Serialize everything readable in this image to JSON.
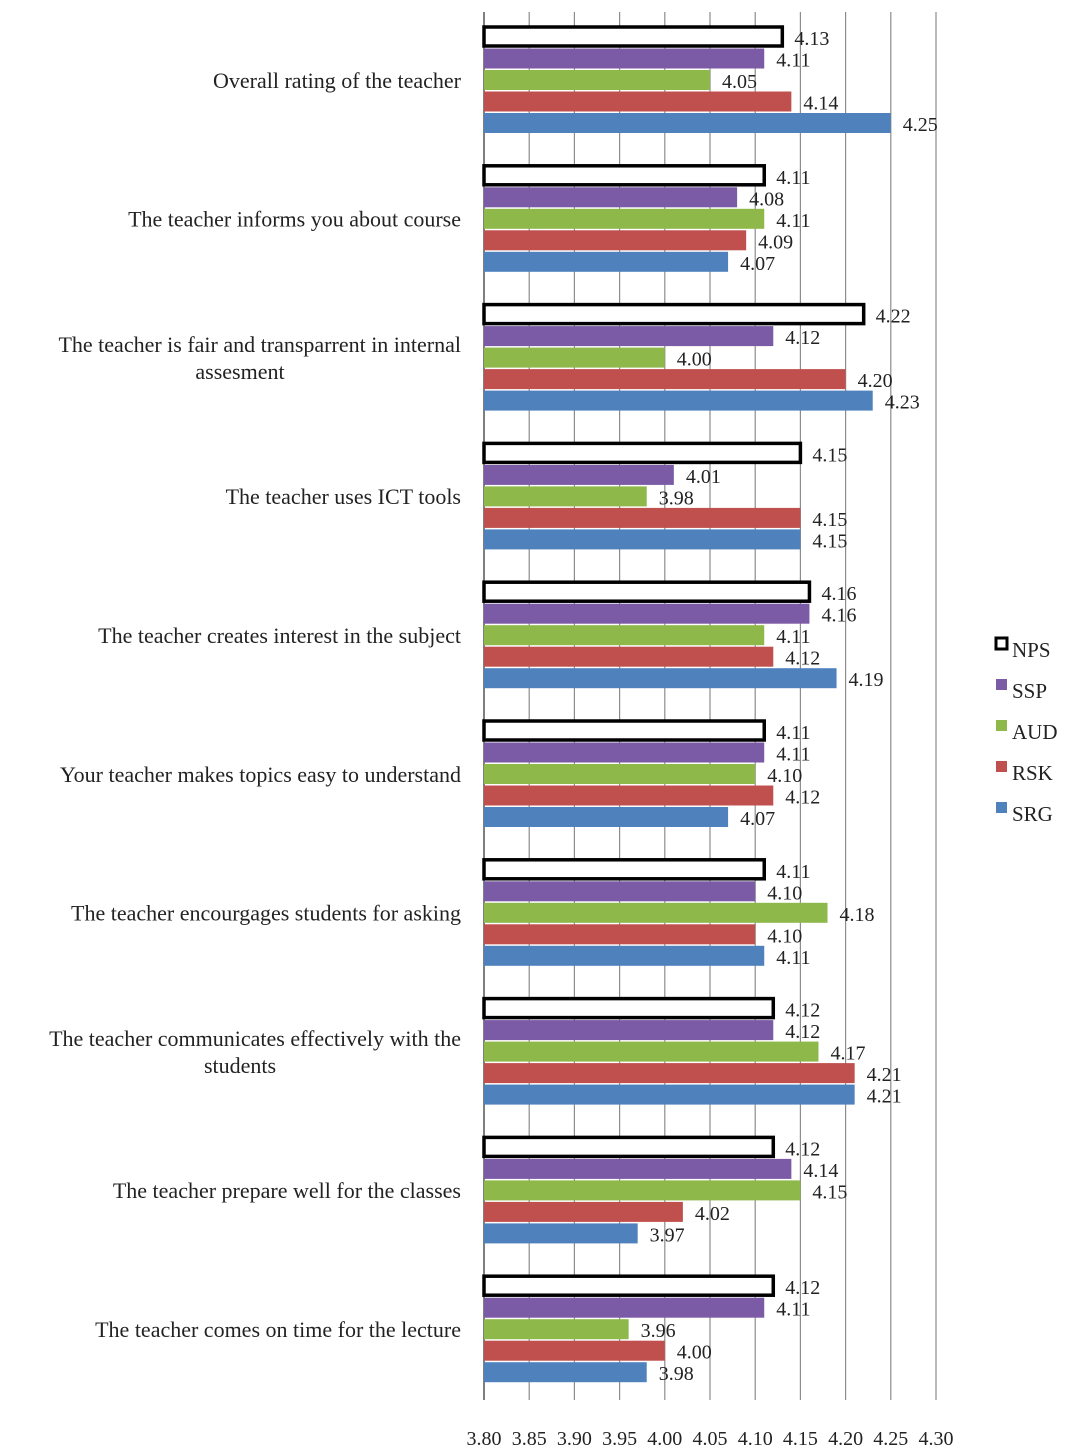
{
  "chart_data": {
    "type": "bar",
    "orientation": "horizontal",
    "title": "",
    "xlabel": "",
    "ylabel": "",
    "xlim": [
      3.8,
      4.3
    ],
    "tick_step": 0.05,
    "tick_labels": [
      "3.80",
      "3.85",
      "3.90",
      "3.95",
      "4.00",
      "4.05",
      "4.10",
      "4.15",
      "4.20",
      "4.25",
      "4.30"
    ],
    "grid": "vertical",
    "legend_position": "right",
    "categories": [
      [
        "Overall rating of the teacher"
      ],
      [
        "The teacher informs you about course"
      ],
      [
        "The teacher is fair and transparrent in internal",
        "assesment"
      ],
      [
        "The teacher uses ICT tools"
      ],
      [
        "The teacher creates interest in the subject"
      ],
      [
        "Your teacher makes topics easy to understand"
      ],
      [
        "The teacher encourgages students for asking"
      ],
      [
        "The teacher communicates effectively with the",
        "students"
      ],
      [
        "The teacher prepare well for the classes"
      ],
      [
        "The teacher comes on time for the lecture"
      ]
    ],
    "series": [
      {
        "name": "NPS",
        "color": "#ffffff",
        "stroke": "#000000",
        "values": [
          4.13,
          4.11,
          4.22,
          4.15,
          4.16,
          4.11,
          4.11,
          4.12,
          4.12,
          4.12
        ],
        "labels": [
          "4.13",
          "4.11",
          "4.22",
          "4.15",
          "4.16",
          "4.11",
          "4.11",
          "4.12",
          "4.12",
          "4.12"
        ]
      },
      {
        "name": "SSP",
        "color": "#7b5aa6",
        "values": [
          4.11,
          4.08,
          4.12,
          4.01,
          4.16,
          4.11,
          4.1,
          4.12,
          4.14,
          4.11
        ],
        "labels": [
          "4.11",
          "4.08",
          "4.12",
          "4.01",
          "4.16",
          "4.11",
          "4.10",
          "4.12",
          "4.14",
          "4.11"
        ]
      },
      {
        "name": "AUD",
        "color": "#8fb84b",
        "values": [
          4.05,
          4.11,
          4.0,
          3.98,
          4.11,
          4.1,
          4.18,
          4.17,
          4.15,
          3.96
        ],
        "labels": [
          "4.05",
          "4.11",
          "4.00",
          "3.98",
          "4.11",
          "4.10",
          "4.18",
          "4.17",
          "4.15",
          "3.96"
        ]
      },
      {
        "name": "RSK",
        "color": "#c0504d",
        "values": [
          4.14,
          4.09,
          4.2,
          4.15,
          4.12,
          4.12,
          4.1,
          4.21,
          4.02,
          4.0
        ],
        "labels": [
          "4.14",
          "4.09",
          "4.20",
          "4.15",
          "4.12",
          "4.12",
          "4.10",
          "4.21",
          "4.02",
          "4.00"
        ]
      },
      {
        "name": "SRG",
        "color": "#4f81bd",
        "values": [
          4.25,
          4.07,
          4.23,
          4.15,
          4.19,
          4.07,
          4.11,
          4.21,
          3.97,
          3.98
        ],
        "labels": [
          "4.25",
          "4.07",
          "4.23",
          "4.15",
          "4.19",
          "4.07",
          "4.11",
          "4.21",
          "3.97",
          "3.98"
        ]
      }
    ]
  }
}
